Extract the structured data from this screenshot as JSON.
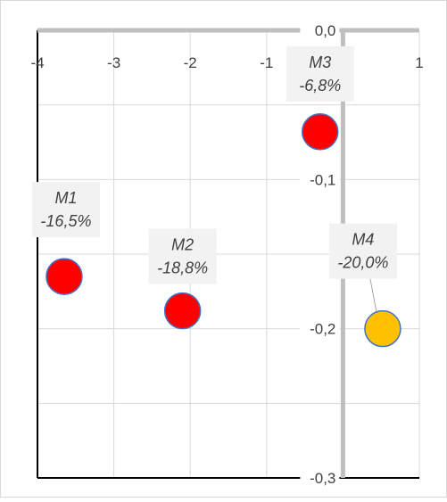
{
  "chart_data": {
    "type": "scatter",
    "title": "",
    "xlabel": "",
    "ylabel": "",
    "xlim": [
      -4,
      1
    ],
    "ylim": [
      -0.3,
      0.0
    ],
    "x_ticks": [
      -4,
      -3,
      -2,
      -1,
      0,
      1
    ],
    "y_ticks": [
      0.0,
      -0.1,
      -0.2,
      -0.3
    ],
    "x_tick_labels": [
      "-4",
      "-3",
      "-2",
      "-1",
      "0",
      "1"
    ],
    "y_tick_labels": [
      "0,0",
      "-0,1",
      "-0,2",
      "-0,3"
    ],
    "grid": true,
    "legend": "none",
    "points": [
      {
        "name": "M1",
        "x": -3.65,
        "y": -0.165,
        "label": "-16,5%",
        "color": "#FF0000"
      },
      {
        "name": "M2",
        "x": -2.1,
        "y": -0.188,
        "label": "-18,8%",
        "color": "#FF0000"
      },
      {
        "name": "M3",
        "x": -0.3,
        "y": -0.068,
        "label": "-6,8%",
        "color": "#FF0000"
      },
      {
        "name": "M4",
        "x": 0.52,
        "y": -0.2,
        "label": "-20,0%",
        "color": "#FFC000"
      }
    ]
  },
  "colors": {
    "grid": "#d9d9d9",
    "axis": "#bfbfbf",
    "frame": "#000000",
    "marker_outline": "#4472C4",
    "label_bg": "#f2f2f2",
    "text": "#404040"
  }
}
